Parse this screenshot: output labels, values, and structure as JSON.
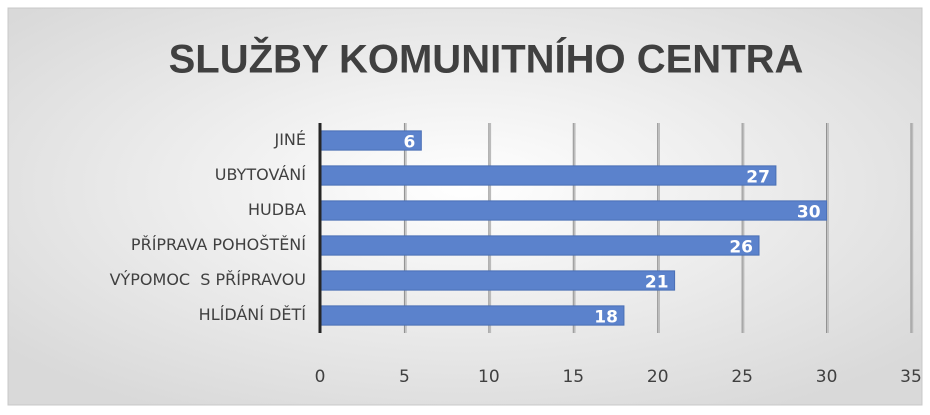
{
  "chart_data": {
    "type": "bar",
    "orientation": "horizontal",
    "title": "SLUŽBY KOMUNITNÍHO CENTRA",
    "categories": [
      "JINÉ",
      "UBYTOVÁNÍ",
      "HUDBA",
      "PŘÍPRAVA POHOŠTĚNÍ",
      "VÝPOMOC  S PŘÍPRAVOU",
      "HLÍDÁNÍ DĚTÍ"
    ],
    "values": [
      6,
      27,
      30,
      26,
      21,
      18
    ],
    "color": "#5b82cc",
    "xlim": [
      0,
      35
    ],
    "xticks": [
      0,
      5,
      10,
      15,
      20,
      25,
      30,
      35
    ],
    "grid": true
  }
}
